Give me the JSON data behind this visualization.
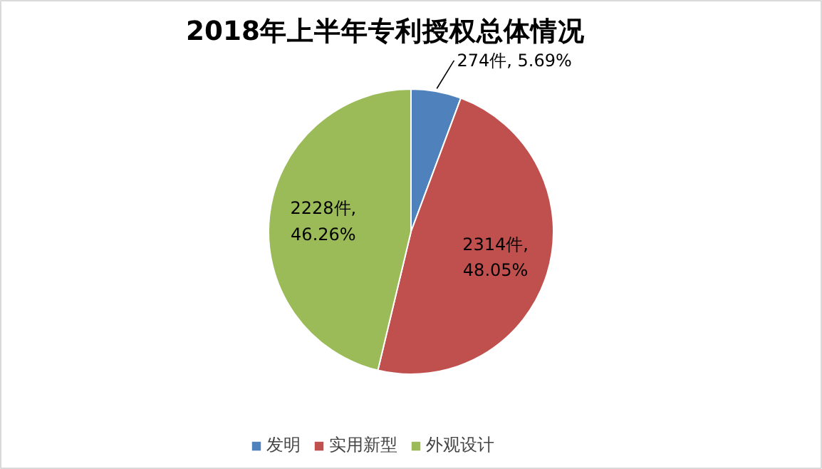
{
  "chart_data": {
    "type": "pie",
    "title": "2018年上半年专利授权总体情况",
    "categories": [
      "发明",
      "实用新型",
      "外观设计"
    ],
    "values": [
      274,
      2314,
      2228
    ],
    "colors": [
      "#4f81bd",
      "#c0504d",
      "#9bbb59"
    ],
    "value_labels": [
      "274件, 5.69%",
      "2314件, 48.05%",
      "2228件, 46.26%"
    ],
    "legend": "bottom"
  }
}
